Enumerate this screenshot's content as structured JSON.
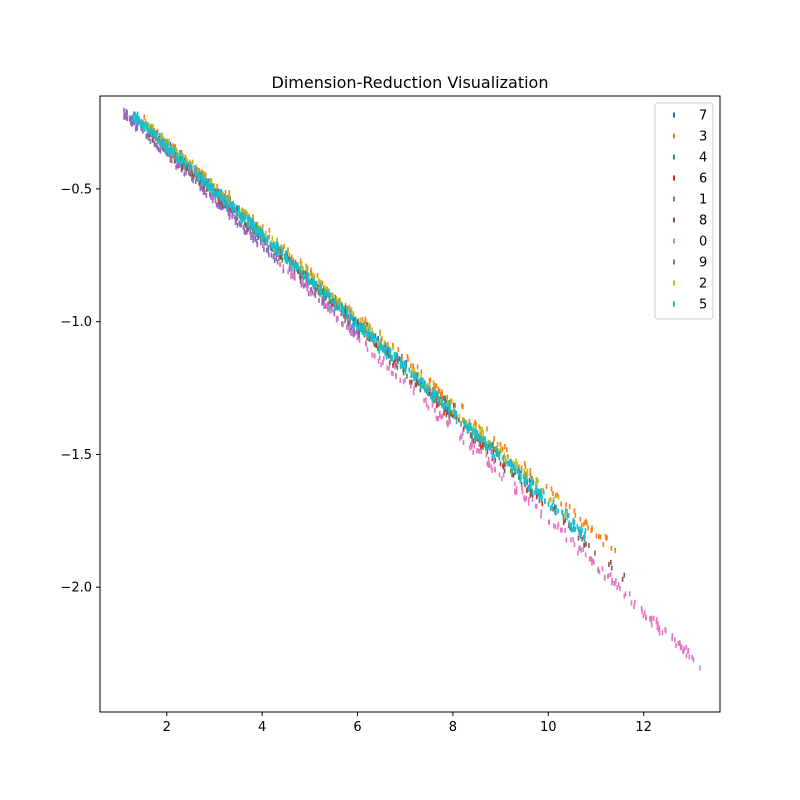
{
  "chart_data": {
    "type": "scatter",
    "title": "Dimension-Reduction Visualization",
    "xlabel": "",
    "ylabel": "",
    "xlim": [
      0.6,
      13.6
    ],
    "ylim": [
      -2.47,
      -0.15
    ],
    "xticks": [
      2,
      4,
      6,
      8,
      10,
      12
    ],
    "yticks": [
      -0.5,
      -1.0,
      -1.5,
      -2.0
    ],
    "xtick_labels": [
      "2",
      "4",
      "6",
      "8",
      "10",
      "12"
    ],
    "ytick_labels": [
      "−0.5",
      "−1.0",
      "−1.5",
      "−2.0"
    ],
    "grid": false,
    "legend_position": "top-right",
    "marker": "vertical-tick",
    "series": [
      {
        "name": "7",
        "color": "#1f77b4",
        "x_range": [
          1.6,
          9.8
        ],
        "count": 160,
        "offset": 0.01
      },
      {
        "name": "3",
        "color": "#ff7f0e",
        "x_range": [
          1.5,
          11.6
        ],
        "count": 200,
        "offset": 0.035
      },
      {
        "name": "4",
        "color": "#2ca02c",
        "x_range": [
          1.6,
          9.6
        ],
        "count": 150,
        "offset": 0.0
      },
      {
        "name": "6",
        "color": "#d62728",
        "x_range": [
          1.8,
          10.0
        ],
        "count": 140,
        "offset": -0.015
      },
      {
        "name": "1",
        "color": "#9467bd",
        "x_range": [
          1.1,
          6.2
        ],
        "count": 230,
        "offset": -0.05
      },
      {
        "name": "8",
        "color": "#8c564b",
        "x_range": [
          1.6,
          11.6
        ],
        "count": 170,
        "offset": -0.015
      },
      {
        "name": "0",
        "color": "#e377c2",
        "x_range": [
          4.0,
          13.2
        ],
        "count": 210,
        "offset": -0.055
      },
      {
        "name": "9",
        "color": "#7f7f7f",
        "x_range": [
          1.6,
          10.0
        ],
        "count": 140,
        "offset": 0.0
      },
      {
        "name": "2",
        "color": "#bcbd22",
        "x_range": [
          1.6,
          10.5
        ],
        "count": 200,
        "offset": 0.02
      },
      {
        "name": "5",
        "color": "#17becf",
        "x_range": [
          1.3,
          10.8
        ],
        "count": 650,
        "offset": 0.0
      }
    ],
    "trend": {
      "slope": -0.1671,
      "intercept": -0.0067
    }
  }
}
